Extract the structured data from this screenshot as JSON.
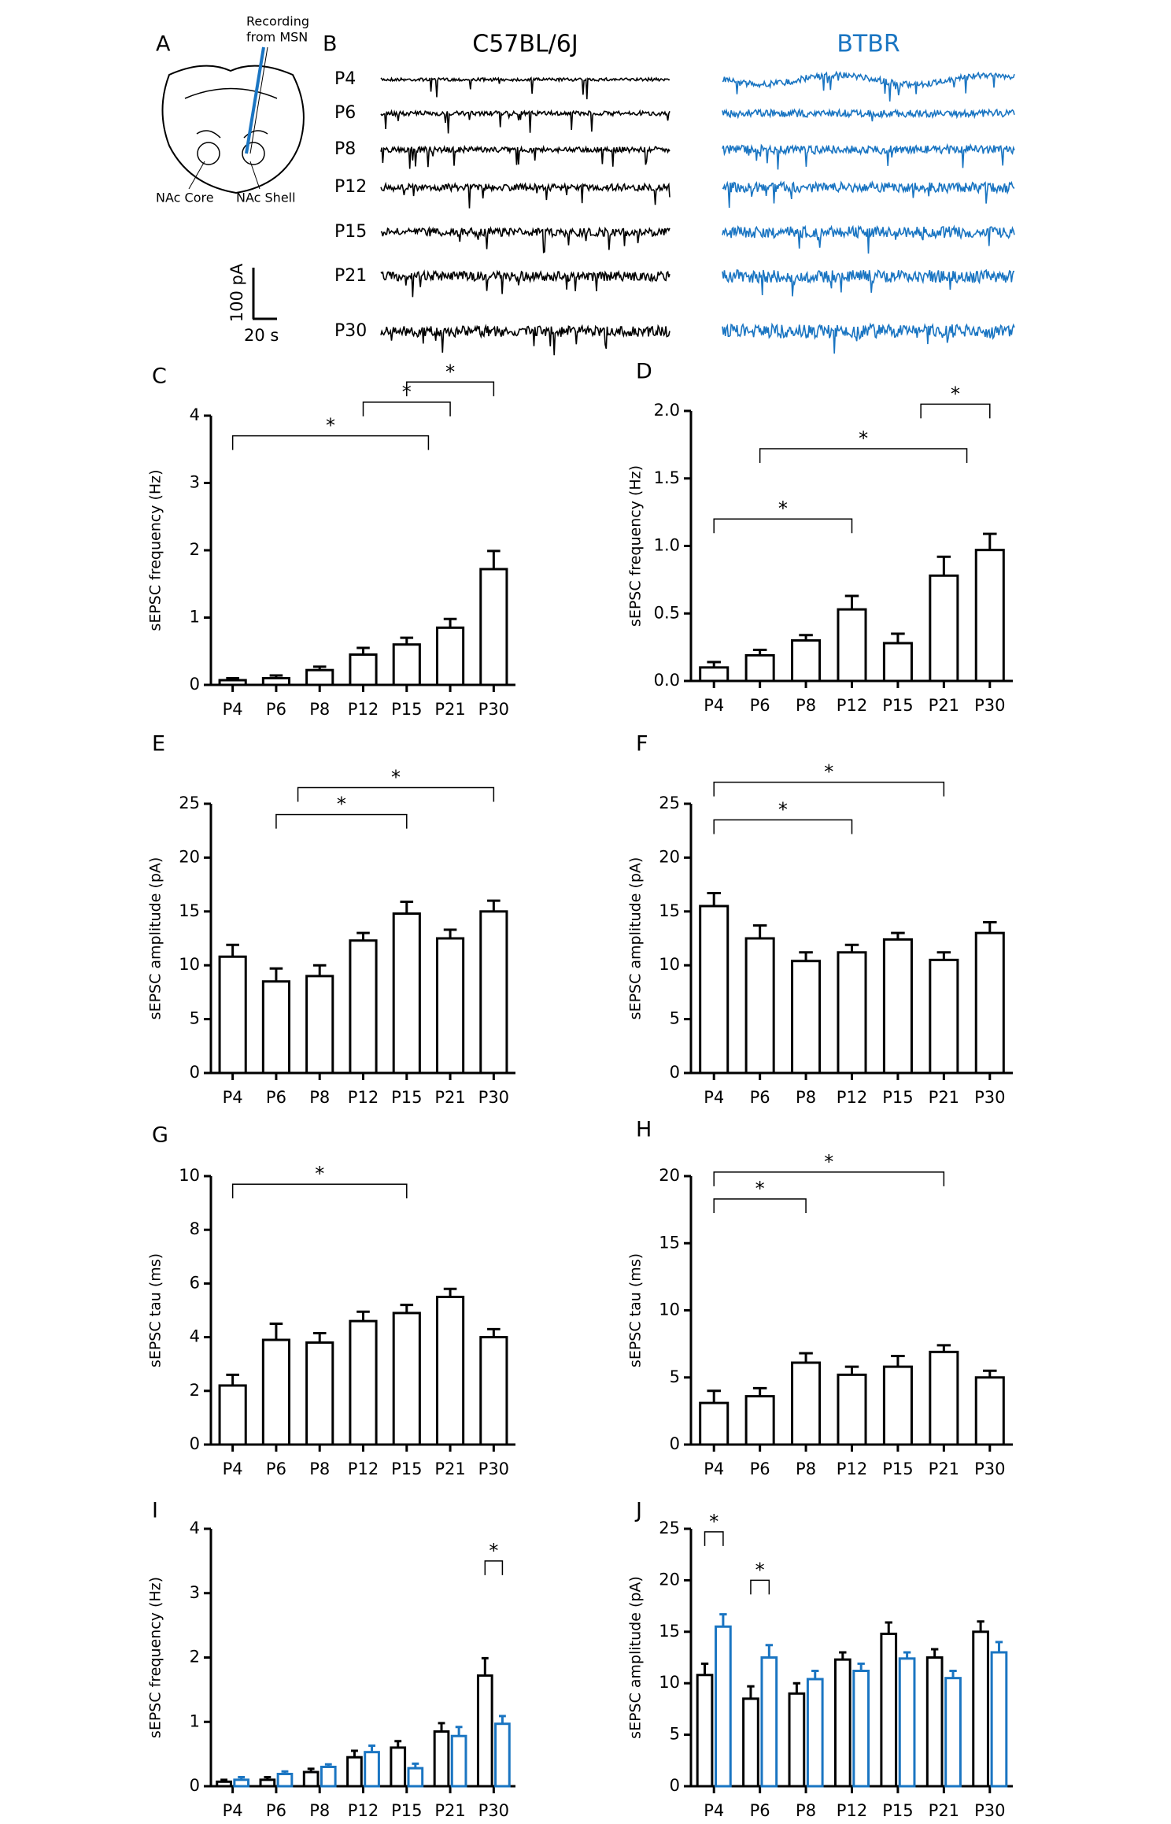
{
  "panel_a": {
    "label": "A",
    "recording": [
      "Recording",
      "from MSN"
    ],
    "core": "NAc Core",
    "shell": "NAc Shell",
    "scale_y": "100 pA",
    "scale_x": "20 s"
  },
  "panel_b": {
    "label": "B",
    "strains": [
      {
        "name": "C57BL/6J",
        "color": "#000000"
      },
      {
        "name": "BTBR",
        "color": "#1a75c2"
      }
    ],
    "ages": [
      "P4",
      "P6",
      "P8",
      "P12",
      "P15",
      "P21",
      "P30"
    ]
  },
  "chart_data": [
    {
      "type": "bar",
      "label": "C",
      "ylabel": "sEPSC frequency (Hz)",
      "categories": [
        "P4",
        "P6",
        "P8",
        "P12",
        "P15",
        "P21",
        "P30"
      ],
      "values": [
        0.07,
        0.1,
        0.22,
        0.45,
        0.6,
        0.85,
        1.72
      ],
      "errors": [
        0.03,
        0.04,
        0.05,
        0.1,
        0.1,
        0.13,
        0.27
      ],
      "color": "#000000",
      "ylim": [
        0,
        4
      ],
      "yticks": [
        0,
        1,
        2,
        3,
        4
      ],
      "annotations": [
        "*",
        "*",
        "*"
      ]
    },
    {
      "type": "bar",
      "label": "D",
      "ylabel": "sEPSC frequency (Hz)",
      "categories": [
        "P4",
        "P6",
        "P8",
        "P12",
        "P15",
        "P21",
        "P30"
      ],
      "values": [
        0.1,
        0.19,
        0.3,
        0.53,
        0.28,
        0.78,
        0.97
      ],
      "errors": [
        0.04,
        0.04,
        0.04,
        0.1,
        0.07,
        0.14,
        0.12
      ],
      "color": "#000000",
      "ylim": [
        0,
        2
      ],
      "yticks": [
        {
          "value": 0,
          "label": "0.0"
        },
        0.5,
        {
          "value": 1,
          "label": "1.0"
        },
        1.5,
        {
          "value": 2,
          "label": "2.0"
        }
      ],
      "annotations": [
        "*",
        "*",
        "*"
      ]
    },
    {
      "type": "bar",
      "label": "E",
      "ylabel": "sEPSC amplitude (pA)",
      "categories": [
        "P4",
        "P6",
        "P8",
        "P12",
        "P15",
        "P21",
        "P30"
      ],
      "values": [
        10.8,
        8.5,
        9.0,
        12.3,
        14.8,
        12.5,
        15.0
      ],
      "errors": [
        1.1,
        1.2,
        1.0,
        0.7,
        1.1,
        0.8,
        1.0
      ],
      "color": "#000000",
      "ylim": [
        0,
        25
      ],
      "yticks": [
        0,
        5,
        10,
        15,
        20,
        25
      ],
      "annotations": [
        "*",
        "*"
      ]
    },
    {
      "type": "bar",
      "label": "F",
      "ylabel": "sEPSC amplitude (pA)",
      "categories": [
        "P4",
        "P6",
        "P8",
        "P12",
        "P15",
        "P21",
        "P30"
      ],
      "values": [
        15.5,
        12.5,
        10.4,
        11.2,
        12.4,
        10.5,
        13.0
      ],
      "errors": [
        1.2,
        1.2,
        0.8,
        0.7,
        0.6,
        0.7,
        1.0
      ],
      "color": "#000000",
      "ylim": [
        0,
        25
      ],
      "yticks": [
        0,
        5,
        10,
        15,
        20,
        25
      ],
      "annotations": [
        "*",
        "*"
      ]
    },
    {
      "type": "bar",
      "label": "G",
      "ylabel": "sEPSC tau (ms)",
      "categories": [
        "P4",
        "P6",
        "P8",
        "P12",
        "P15",
        "P21",
        "P30"
      ],
      "values": [
        2.2,
        3.9,
        3.8,
        4.6,
        4.9,
        5.5,
        4.0
      ],
      "errors": [
        0.4,
        0.6,
        0.35,
        0.35,
        0.3,
        0.3,
        0.3
      ],
      "color": "#000000",
      "ylim": [
        0,
        10
      ],
      "yticks": [
        0,
        2,
        4,
        6,
        8,
        10
      ],
      "annotations": [
        "*"
      ]
    },
    {
      "type": "bar",
      "label": "H",
      "ylabel": "sEPSC tau (ms)",
      "categories": [
        "P4",
        "P6",
        "P8",
        "P12",
        "P15",
        "P21",
        "P30"
      ],
      "values": [
        3.1,
        3.6,
        6.1,
        5.2,
        5.8,
        6.9,
        5.0
      ],
      "errors": [
        0.9,
        0.6,
        0.7,
        0.6,
        0.8,
        0.5,
        0.5
      ],
      "color": "#000000",
      "ylim": [
        0,
        20
      ],
      "yticks": [
        0,
        5,
        10,
        15,
        20
      ],
      "annotations": [
        "*",
        "*"
      ]
    },
    {
      "type": "grouped_bar",
      "label": "I",
      "ylabel": "sEPSC frequency (Hz)",
      "categories": [
        "P4",
        "P6",
        "P8",
        "P12",
        "P15",
        "P21",
        "P30"
      ],
      "series": [
        {
          "color": "#000000",
          "values": [
            0.07,
            0.1,
            0.22,
            0.45,
            0.6,
            0.85,
            1.72
          ],
          "errors": [
            0.03,
            0.04,
            0.05,
            0.1,
            0.1,
            0.13,
            0.27
          ]
        },
        {
          "color": "#1a75c2",
          "values": [
            0.1,
            0.19,
            0.3,
            0.53,
            0.28,
            0.78,
            0.97
          ],
          "errors": [
            0.04,
            0.04,
            0.04,
            0.1,
            0.07,
            0.14,
            0.12
          ]
        }
      ],
      "ylim": [
        0,
        4
      ],
      "yticks": [
        0,
        1,
        2,
        3,
        4
      ],
      "annotations": [
        "*"
      ]
    },
    {
      "type": "grouped_bar",
      "label": "J",
      "ylabel": "sEPSC amplitude (pA)",
      "categories": [
        "P4",
        "P6",
        "P8",
        "P12",
        "P15",
        "P21",
        "P30"
      ],
      "series": [
        {
          "color": "#000000",
          "values": [
            10.8,
            8.5,
            9.0,
            12.3,
            14.8,
            12.5,
            15.0
          ],
          "errors": [
            1.1,
            1.2,
            1.0,
            0.7,
            1.1,
            0.8,
            1.0
          ]
        },
        {
          "color": "#1a75c2",
          "values": [
            15.5,
            12.5,
            10.4,
            11.2,
            12.4,
            10.5,
            13.0
          ],
          "errors": [
            1.2,
            1.2,
            0.8,
            0.7,
            0.6,
            0.7,
            1.0
          ]
        }
      ],
      "ylim": [
        0,
        25
      ],
      "yticks": [
        0,
        5,
        10,
        15,
        20,
        25
      ],
      "annotations": [
        "*",
        "*"
      ]
    }
  ]
}
